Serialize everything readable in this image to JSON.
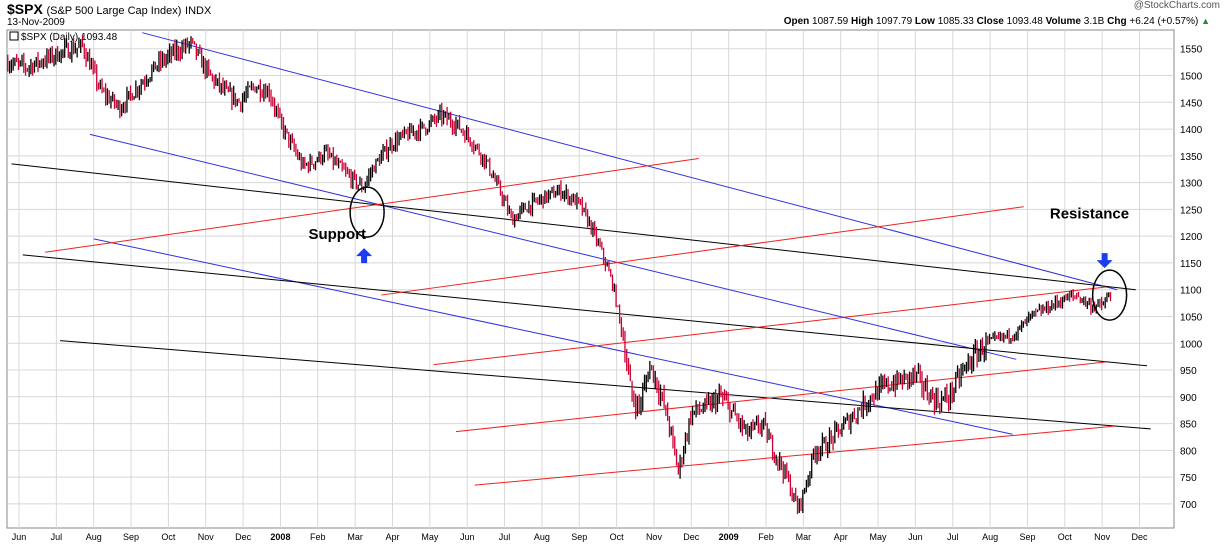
{
  "header": {
    "symbol": "$SPX",
    "name": "(S&P 500 Large Cap Index)",
    "exchange": "INDX",
    "date": "13-Nov-2009",
    "open_label": "Open",
    "open": "1087.59",
    "high_label": "High",
    "high": "1097.79",
    "low_label": "Low",
    "low": "1085.33",
    "close_label": "Close",
    "close": "1093.48",
    "volume_label": "Volume",
    "volume": "3.1B",
    "chg_label": "Chg",
    "chg": "+6.24 (+0.57%)",
    "chg_arrow": "▲",
    "brand": "@StockCharts.com"
  },
  "chart_data": {
    "type": "line",
    "title": "$SPX (S&P 500 Large Cap Index) INDX",
    "series_label": "$SPX (Daily) 1093.48",
    "xlabel": "",
    "ylabel": "",
    "ylim": [
      655,
      1585
    ],
    "xlim": [
      0,
      29.5
    ],
    "yticks": [
      700,
      750,
      800,
      850,
      900,
      950,
      1000,
      1050,
      1100,
      1150,
      1200,
      1250,
      1300,
      1350,
      1400,
      1450,
      1500,
      1550
    ],
    "xticks": [
      {
        "label": "Jun",
        "x": 0.3
      },
      {
        "label": "Jul",
        "x": 1.3
      },
      {
        "label": "Aug",
        "x": 2.3
      },
      {
        "label": "Sep",
        "x": 3.3
      },
      {
        "label": "Oct",
        "x": 4.3
      },
      {
        "label": "Nov",
        "x": 5.3
      },
      {
        "label": "Dec",
        "x": 6.3
      },
      {
        "label": "2008",
        "x": 7.3,
        "year": true
      },
      {
        "label": "Feb",
        "x": 8.3
      },
      {
        "label": "Mar",
        "x": 9.3
      },
      {
        "label": "Apr",
        "x": 10.3
      },
      {
        "label": "May",
        "x": 11.3
      },
      {
        "label": "Jun",
        "x": 12.3
      },
      {
        "label": "Jul",
        "x": 13.3
      },
      {
        "label": "Aug",
        "x": 14.3
      },
      {
        "label": "Sep",
        "x": 15.3
      },
      {
        "label": "Oct",
        "x": 16.3
      },
      {
        "label": "Nov",
        "x": 17.3
      },
      {
        "label": "Dec",
        "x": 18.3
      },
      {
        "label": "2009",
        "x": 19.3,
        "year": true
      },
      {
        "label": "Feb",
        "x": 20.3
      },
      {
        "label": "Mar",
        "x": 21.3
      },
      {
        "label": "Apr",
        "x": 22.3
      },
      {
        "label": "May",
        "x": 23.3
      },
      {
        "label": "Jun",
        "x": 24.3
      },
      {
        "label": "Jul",
        "x": 25.3
      },
      {
        "label": "Aug",
        "x": 26.3
      },
      {
        "label": "Sep",
        "x": 27.3
      },
      {
        "label": "Oct",
        "x": 28.3
      },
      {
        "label": "Nov",
        "x": 29.3
      },
      {
        "label": "Dec",
        "x": 30.3
      }
    ],
    "grid": true,
    "price_anchors": [
      [
        0.0,
        1525
      ],
      [
        0.5,
        1515
      ],
      [
        1.0,
        1530
      ],
      [
        1.5,
        1545
      ],
      [
        2.0,
        1555
      ],
      [
        2.5,
        1470
      ],
      [
        3.0,
        1440
      ],
      [
        3.5,
        1480
      ],
      [
        4.0,
        1520
      ],
      [
        4.5,
        1545
      ],
      [
        4.9,
        1560
      ],
      [
        5.4,
        1500
      ],
      [
        5.8,
        1470
      ],
      [
        6.2,
        1450
      ],
      [
        6.6,
        1480
      ],
      [
        7.0,
        1470
      ],
      [
        7.3,
        1410
      ],
      [
        7.6,
        1370
      ],
      [
        7.9,
        1330
      ],
      [
        8.2,
        1340
      ],
      [
        8.5,
        1355
      ],
      [
        9.0,
        1320
      ],
      [
        9.5,
        1290
      ],
      [
        9.8,
        1330
      ],
      [
        10.3,
        1375
      ],
      [
        10.7,
        1390
      ],
      [
        11.2,
        1405
      ],
      [
        11.6,
        1425
      ],
      [
        12.0,
        1410
      ],
      [
        12.4,
        1380
      ],
      [
        12.8,
        1340
      ],
      [
        13.2,
        1280
      ],
      [
        13.5,
        1230
      ],
      [
        13.8,
        1250
      ],
      [
        14.3,
        1270
      ],
      [
        14.8,
        1285
      ],
      [
        15.3,
        1260
      ],
      [
        15.6,
        1220
      ],
      [
        15.9,
        1170
      ],
      [
        16.2,
        1110
      ],
      [
        16.5,
        1000
      ],
      [
        16.7,
        900
      ],
      [
        16.9,
        880
      ],
      [
        17.2,
        960
      ],
      [
        17.5,
        900
      ],
      [
        17.7,
        850
      ],
      [
        17.95,
        760
      ],
      [
        18.3,
        870
      ],
      [
        18.7,
        880
      ],
      [
        19.1,
        900
      ],
      [
        19.5,
        860
      ],
      [
        19.8,
        830
      ],
      [
        20.2,
        850
      ],
      [
        20.5,
        800
      ],
      [
        20.8,
        760
      ],
      [
        21.0,
        720
      ],
      [
        21.15,
        690
      ],
      [
        21.35,
        730
      ],
      [
        21.6,
        800
      ],
      [
        21.9,
        810
      ],
      [
        22.3,
        840
      ],
      [
        22.7,
        870
      ],
      [
        23.1,
        900
      ],
      [
        23.5,
        920
      ],
      [
        23.9,
        930
      ],
      [
        24.3,
        940
      ],
      [
        24.6,
        910
      ],
      [
        24.9,
        890
      ],
      [
        25.2,
        900
      ],
      [
        25.5,
        940
      ],
      [
        25.8,
        970
      ],
      [
        26.2,
        1000
      ],
      [
        26.6,
        1010
      ],
      [
        27.0,
        1020
      ],
      [
        27.4,
        1050
      ],
      [
        27.8,
        1065
      ],
      [
        28.2,
        1080
      ],
      [
        28.6,
        1090
      ],
      [
        29.0,
        1070
      ],
      [
        29.3,
        1070
      ],
      [
        29.55,
        1093
      ]
    ],
    "trendlines": [
      {
        "color": "blue",
        "x1": 3.6,
        "y1": 1580,
        "x2": 29.7,
        "y2": 1100
      },
      {
        "color": "blue",
        "x1": 2.2,
        "y1": 1390,
        "x2": 27.0,
        "y2": 970
      },
      {
        "color": "blue",
        "x1": 2.3,
        "y1": 1195,
        "x2": 26.9,
        "y2": 830
      },
      {
        "color": "black",
        "x1": 0.1,
        "y1": 1335,
        "x2": 30.2,
        "y2": 1100
      },
      {
        "color": "black",
        "x1": 0.4,
        "y1": 1165,
        "x2": 30.5,
        "y2": 958
      },
      {
        "color": "black",
        "x1": 1.4,
        "y1": 1005,
        "x2": 30.6,
        "y2": 840
      },
      {
        "color": "red",
        "x1": 1.0,
        "y1": 1170,
        "x2": 18.5,
        "y2": 1345
      },
      {
        "color": "red",
        "x1": 10.0,
        "y1": 1090,
        "x2": 27.2,
        "y2": 1255
      },
      {
        "color": "red",
        "x1": 11.4,
        "y1": 960,
        "x2": 29.4,
        "y2": 1105
      },
      {
        "color": "red",
        "x1": 12.0,
        "y1": 835,
        "x2": 29.4,
        "y2": 965
      },
      {
        "color": "red",
        "x1": 12.5,
        "y1": 735,
        "x2": 29.6,
        "y2": 845
      }
    ],
    "annotations": [
      {
        "text": "Support",
        "x": 8.05,
        "y": 1195,
        "arrow": "up",
        "circle_x": 9.62,
        "circle_y": 1245
      },
      {
        "text": "Resistance",
        "x": 27.9,
        "y": 1233,
        "arrow": "down",
        "circle_x": 29.5,
        "circle_y": 1090
      }
    ],
    "colors": {
      "up": "#000000",
      "down": "#cc0033",
      "blue": "#3030e0",
      "black": "#000000",
      "red": "#ee2222",
      "grid": "#d8d8d8",
      "arrow": "#1a3ef0"
    }
  }
}
